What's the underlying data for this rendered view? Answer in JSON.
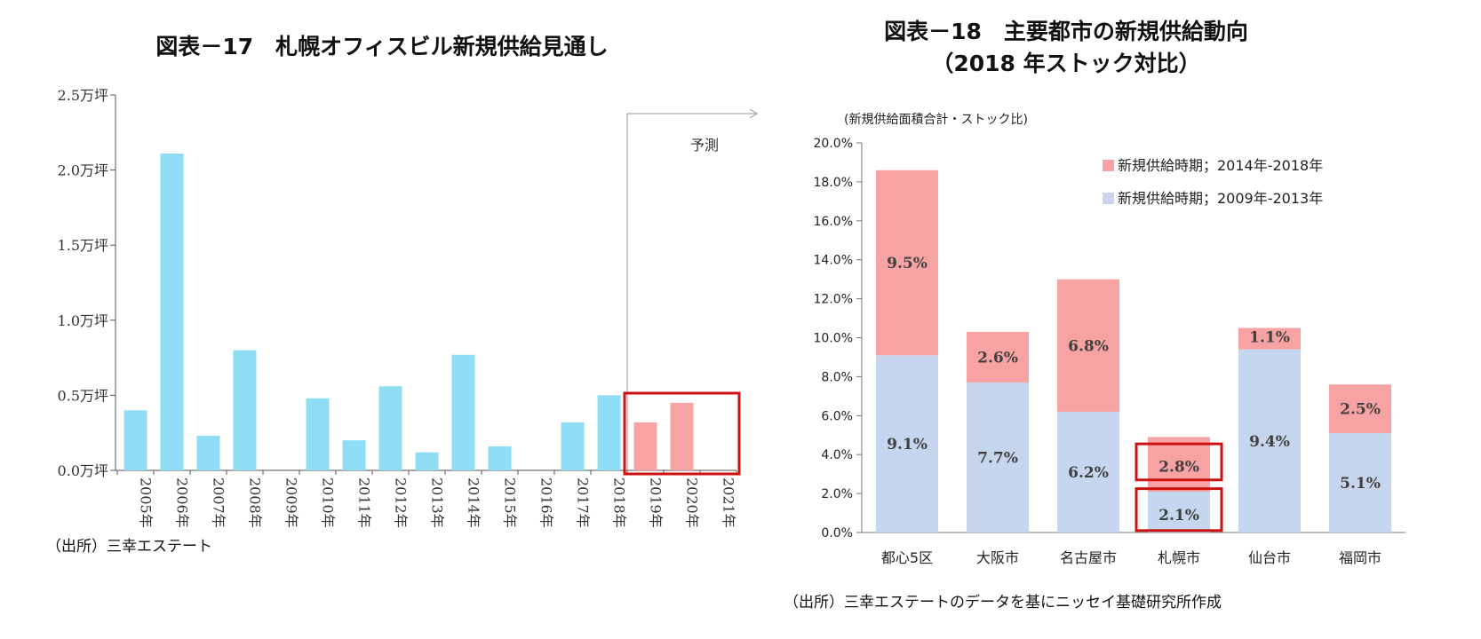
{
  "chart_data": [
    {
      "type": "bar",
      "title": "図表－17　札幌オフィスビル新規供給見通し",
      "categories": [
        "2005年",
        "2006年",
        "2007年",
        "2008年",
        "2009年",
        "2010年",
        "2011年",
        "2012年",
        "2013年",
        "2014年",
        "2015年",
        "2016年",
        "2017年",
        "2018年",
        "2019年",
        "2020年",
        "2021年"
      ],
      "values": [
        0.4,
        2.11,
        0.23,
        0.8,
        0.0,
        0.48,
        0.2,
        0.56,
        0.12,
        0.77,
        0.16,
        0.0,
        0.32,
        0.5,
        0.32,
        0.45,
        0.0
      ],
      "forecast_from": "2019年",
      "forecast_label": "予測",
      "ylim": [
        0,
        2.5
      ],
      "yticks": [
        0,
        0.5,
        1.0,
        1.5,
        2.0,
        2.5
      ],
      "ytick_labels": [
        "0.0万坪",
        "0.5万坪",
        "1.0万坪",
        "1.5万坪",
        "2.0万坪",
        "2.5万坪"
      ],
      "colors": {
        "actual": "#8fdcf5",
        "forecast": "#f8a3a3",
        "highlight_box": "#cc1111"
      },
      "source": "（出所）三幸エステート",
      "grid": false
    },
    {
      "type": "bar",
      "stacked": true,
      "title_line1": "図表－18　主要都市の新規供給動向",
      "title_line2": "（2018 年ストック対比）",
      "ylabel": "(新規供給面積合計・ストック比)",
      "categories": [
        "都心5区",
        "大阪市",
        "名古屋市",
        "札幌市",
        "仙台市",
        "福岡市"
      ],
      "series": [
        {
          "name": "新規供給時期；2009年-2013年",
          "values": [
            9.1,
            7.7,
            6.2,
            2.1,
            9.4,
            5.1
          ],
          "labels": [
            "9.1%",
            "7.7%",
            "6.2%",
            "2.1%",
            "9.4%",
            "5.1%"
          ],
          "color": "#c6d6ef"
        },
        {
          "name": "新規供給時期；2014年-2018年",
          "values": [
            9.5,
            2.6,
            6.8,
            2.8,
            1.1,
            2.5
          ],
          "labels": [
            "9.5%",
            "2.6%",
            "6.8%",
            "2.8%",
            "1.1%",
            "2.5%"
          ],
          "color": "#f8a3a3"
        }
      ],
      "ylim": [
        0,
        20
      ],
      "yticks": [
        0,
        2,
        4,
        6,
        8,
        10,
        12,
        14,
        16,
        18,
        20
      ],
      "ytick_labels": [
        "0.0%",
        "2.0%",
        "4.0%",
        "6.0%",
        "8.0%",
        "10.0%",
        "12.0%",
        "14.0%",
        "16.0%",
        "18.0%",
        "20.0%"
      ],
      "legend_position": "top-right",
      "highlight_category": "札幌市",
      "highlight_color": "#cc1111",
      "source": "（出所）三幸エステートのデータを基にニッセイ基礎研究所作成",
      "grid": false
    }
  ]
}
